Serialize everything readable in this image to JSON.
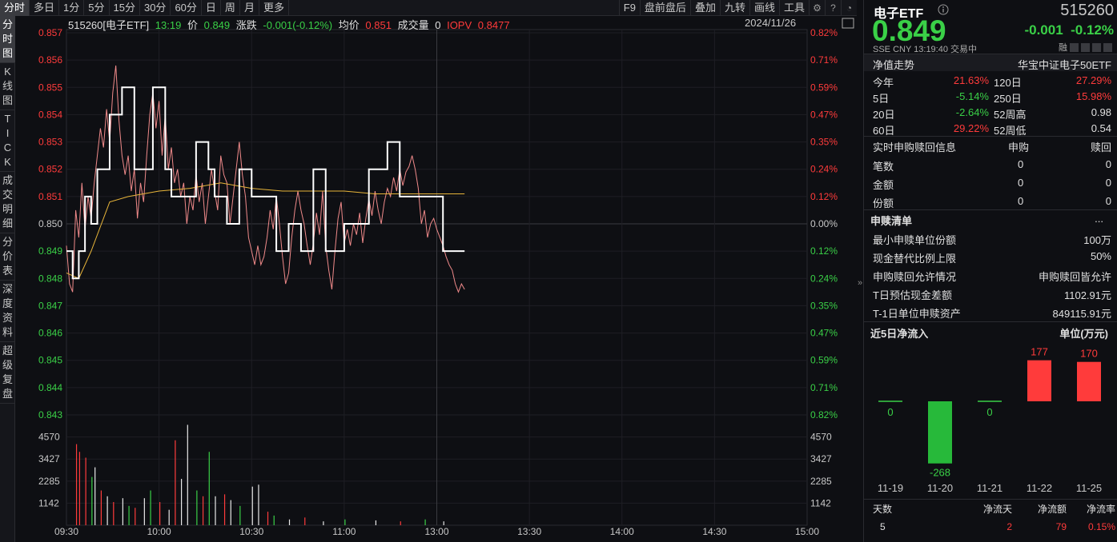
{
  "toolbar": {
    "tabs": [
      "分时",
      "多日",
      "1分",
      "5分",
      "15分",
      "30分",
      "60分",
      "日",
      "周",
      "月",
      "更多"
    ],
    "right": [
      "F9",
      "盘前盘后",
      "叠加",
      "九转",
      "画线",
      "工具"
    ]
  },
  "sidebar": {
    "items": [
      "分时图",
      "K线图",
      "TICK",
      "成交明细",
      "分价表",
      "深度资料",
      "超级复盘"
    ]
  },
  "info": {
    "code_name": "515260[电子ETF]",
    "time": "13:19",
    "price_label": "价",
    "price": "0.849",
    "change_label": "涨跌",
    "change": "-0.001(-0.12%)",
    "avg_label": "均价",
    "avg": "0.851",
    "vol_label": "成交量",
    "vol": "0",
    "iopv_label": "IOPV",
    "iopv": "0.8477",
    "date": "2024/11/26"
  },
  "axes": {
    "price_ticks": [
      "0.857",
      "0.856",
      "0.855",
      "0.854",
      "0.853",
      "0.852",
      "0.851",
      "0.850",
      "0.849",
      "0.848",
      "0.847",
      "0.846",
      "0.845",
      "0.844",
      "0.843"
    ],
    "pct_ticks": [
      "0.82%",
      "0.71%",
      "0.59%",
      "0.47%",
      "0.35%",
      "0.24%",
      "0.12%",
      "0.00%",
      "0.12%",
      "0.24%",
      "0.35%",
      "0.47%",
      "0.59%",
      "0.71%",
      "0.82%"
    ],
    "vol_ticks": [
      "4570",
      "3427",
      "2285",
      "1142"
    ],
    "time_ticks": [
      "09:30",
      "10:00",
      "10:30",
      "11:00",
      "13:00",
      "13:30",
      "14:00",
      "14:30",
      "15:00"
    ]
  },
  "chart_data": {
    "type": "line",
    "prev_close": 0.85,
    "ylim": [
      0.843,
      0.857
    ],
    "series": [
      {
        "points": [
          [
            0,
            0.8492
          ],
          [
            1,
            0.8478
          ],
          [
            2,
            0.8475
          ],
          [
            3,
            0.8505
          ],
          [
            4,
            0.8495
          ],
          [
            5,
            0.8515
          ],
          [
            6,
            0.8498
          ],
          [
            7,
            0.851
          ],
          [
            8,
            0.8502
          ],
          [
            9,
            0.8515
          ],
          [
            10,
            0.8525
          ],
          [
            11,
            0.8535
          ],
          [
            12,
            0.8528
          ],
          [
            13,
            0.8542
          ],
          [
            14,
            0.853
          ],
          [
            15,
            0.8548
          ],
          [
            16,
            0.8558
          ],
          [
            17,
            0.8538
          ],
          [
            18,
            0.8525
          ],
          [
            19,
            0.8518
          ],
          [
            20,
            0.8525
          ],
          [
            21,
            0.8512
          ],
          [
            22,
            0.852
          ],
          [
            23,
            0.8502
          ],
          [
            24,
            0.8515
          ],
          [
            25,
            0.8508
          ],
          [
            26,
            0.8525
          ],
          [
            27,
            0.854
          ],
          [
            28,
            0.8548
          ],
          [
            29,
            0.8535
          ],
          [
            30,
            0.8545
          ],
          [
            31,
            0.8525
          ],
          [
            32,
            0.854
          ],
          [
            33,
            0.852
          ],
          [
            34,
            0.8528
          ],
          [
            35,
            0.8515
          ],
          [
            36,
            0.852
          ],
          [
            37,
            0.851
          ],
          [
            38,
            0.8515
          ],
          [
            39,
            0.85
          ],
          [
            40,
            0.851
          ],
          [
            41,
            0.8505
          ],
          [
            42,
            0.8518
          ],
          [
            43,
            0.8508
          ],
          [
            44,
            0.8515
          ],
          [
            45,
            0.85
          ],
          [
            46,
            0.851
          ],
          [
            47,
            0.852
          ],
          [
            48,
            0.8512
          ],
          [
            49,
            0.8505
          ],
          [
            50,
            0.8525
          ],
          [
            51,
            0.8518
          ],
          [
            52,
            0.8515
          ],
          [
            53,
            0.85
          ],
          [
            54,
            0.851
          ],
          [
            55,
            0.852
          ],
          [
            56,
            0.853
          ],
          [
            57,
            0.8518
          ],
          [
            58,
            0.851
          ],
          [
            59,
            0.8495
          ],
          [
            60,
            0.849
          ],
          [
            61,
            0.8485
          ],
          [
            62,
            0.8492
          ],
          [
            63,
            0.8485
          ],
          [
            64,
            0.8488
          ],
          [
            65,
            0.8495
          ],
          [
            66,
            0.8505
          ],
          [
            67,
            0.8498
          ],
          [
            68,
            0.851
          ],
          [
            69,
            0.85
          ],
          [
            70,
            0.8488
          ],
          [
            71,
            0.8478
          ],
          [
            72,
            0.8482
          ],
          [
            73,
            0.8495
          ],
          [
            74,
            0.8505
          ],
          [
            75,
            0.8512
          ],
          [
            76,
            0.8505
          ],
          [
            77,
            0.85
          ],
          [
            78,
            0.8492
          ],
          [
            79,
            0.8485
          ],
          [
            80,
            0.8493
          ],
          [
            81,
            0.8504
          ],
          [
            82,
            0.8496
          ],
          [
            83,
            0.8512
          ],
          [
            84,
            0.8492
          ],
          [
            85,
            0.8483
          ],
          [
            86,
            0.8476
          ],
          [
            87,
            0.849
          ],
          [
            88,
            0.8502
          ],
          [
            89,
            0.8508
          ],
          [
            90,
            0.8493
          ],
          [
            91,
            0.8498
          ],
          [
            92,
            0.8492
          ],
          [
            93,
            0.85
          ],
          [
            94,
            0.8496
          ],
          [
            95,
            0.8504
          ],
          [
            96,
            0.8493
          ],
          [
            97,
            0.8502
          ],
          [
            98,
            0.8509
          ],
          [
            99,
            0.8503
          ],
          [
            100,
            0.8512
          ],
          [
            101,
            0.8505
          ],
          [
            102,
            0.85
          ],
          [
            103,
            0.8508
          ],
          [
            104,
            0.8513
          ],
          [
            105,
            0.851
          ],
          [
            106,
            0.8517
          ],
          [
            107,
            0.8512
          ],
          [
            108,
            0.852
          ],
          [
            109,
            0.8514
          ],
          [
            110,
            0.8519
          ],
          [
            111,
            0.8521
          ],
          [
            112,
            0.8525
          ],
          [
            113,
            0.852
          ],
          [
            114,
            0.8513
          ],
          [
            115,
            0.85
          ],
          [
            116,
            0.8505
          ],
          [
            117,
            0.8495
          ],
          [
            118,
            0.85
          ],
          [
            119,
            0.8502
          ],
          [
            120,
            0.8498
          ],
          [
            121,
            0.8495
          ],
          [
            122,
            0.8492
          ],
          [
            123,
            0.8488
          ],
          [
            124,
            0.8485
          ],
          [
            125,
            0.8483
          ],
          [
            126,
            0.8478
          ],
          [
            127,
            0.8475
          ],
          [
            128,
            0.8478
          ],
          [
            129,
            0.8476
          ]
        ]
      },
      {
        "points": [
          [
            0,
            0.8482
          ],
          [
            4,
            0.848
          ],
          [
            8,
            0.849
          ],
          [
            14,
            0.8508
          ],
          [
            20,
            0.851
          ],
          [
            30,
            0.8512
          ],
          [
            40,
            0.8513
          ],
          [
            50,
            0.8515
          ],
          [
            60,
            0.8513
          ],
          [
            70,
            0.8512
          ],
          [
            80,
            0.8512
          ],
          [
            90,
            0.8512
          ],
          [
            100,
            0.8511
          ],
          [
            110,
            0.8511
          ],
          [
            120,
            0.8511
          ],
          [
            129,
            0.8511
          ]
        ]
      },
      {
        "points": [
          [
            0,
            0.849
          ],
          [
            2,
            0.848
          ],
          [
            4,
            0.849
          ],
          [
            6,
            0.851
          ],
          [
            8,
            0.85
          ],
          [
            10,
            0.852
          ],
          [
            14,
            0.854
          ],
          [
            18,
            0.855
          ],
          [
            22,
            0.852
          ],
          [
            26,
            0.852
          ],
          [
            28,
            0.855
          ],
          [
            32,
            0.852
          ],
          [
            34,
            0.851
          ],
          [
            40,
            0.851
          ],
          [
            42,
            0.853
          ],
          [
            46,
            0.852
          ],
          [
            48,
            0.851
          ],
          [
            52,
            0.85
          ],
          [
            56,
            0.852
          ],
          [
            60,
            0.851
          ],
          [
            64,
            0.851
          ],
          [
            68,
            0.849
          ],
          [
            72,
            0.85
          ],
          [
            76,
            0.849
          ],
          [
            80,
            0.852
          ],
          [
            84,
            0.849
          ],
          [
            90,
            0.85
          ],
          [
            98,
            0.852
          ],
          [
            104,
            0.853
          ],
          [
            108,
            0.851
          ],
          [
            118,
            0.851
          ],
          [
            122,
            0.849
          ],
          [
            129,
            0.849
          ]
        ]
      }
    ],
    "volumes": [
      [
        3,
        4200,
        "r"
      ],
      [
        4,
        3800,
        "r"
      ],
      [
        6,
        3500,
        "r"
      ],
      [
        8,
        2500,
        "g"
      ],
      [
        9,
        3000,
        "w"
      ],
      [
        11,
        1800,
        "r"
      ],
      [
        13,
        1500,
        "w"
      ],
      [
        15,
        1200,
        "r"
      ],
      [
        18,
        1400,
        "w"
      ],
      [
        20,
        1000,
        "g"
      ],
      [
        22,
        900,
        "r"
      ],
      [
        25,
        1400,
        "w"
      ],
      [
        27,
        1800,
        "g"
      ],
      [
        30,
        1200,
        "r"
      ],
      [
        33,
        800,
        "w"
      ],
      [
        35,
        4400,
        "r"
      ],
      [
        37,
        2400,
        "w"
      ],
      [
        39,
        5200,
        "w"
      ],
      [
        42,
        1800,
        "g"
      ],
      [
        44,
        1500,
        "r"
      ],
      [
        46,
        3800,
        "g"
      ],
      [
        48,
        1500,
        "w"
      ],
      [
        51,
        1600,
        "r"
      ],
      [
        53,
        1300,
        "w"
      ],
      [
        56,
        1000,
        "g"
      ],
      [
        60,
        2000,
        "w"
      ],
      [
        62,
        2100,
        "w"
      ],
      [
        65,
        700,
        "r"
      ],
      [
        67,
        500,
        "g"
      ],
      [
        72,
        300,
        "w"
      ],
      [
        77,
        400,
        "r"
      ],
      [
        83,
        200,
        "w"
      ],
      [
        90,
        300,
        "g"
      ],
      [
        100,
        250,
        "w"
      ],
      [
        108,
        200,
        "r"
      ],
      [
        116,
        300,
        "g"
      ],
      [
        122,
        200,
        "w"
      ]
    ]
  },
  "panel": {
    "name": "电子ETF",
    "code": "515260",
    "price": "0.849",
    "change": "-0.001",
    "change_pct": "-0.12%",
    "meta": "SSE  CNY  13:19:40  交易中",
    "rong": "融",
    "nav_title": "净值走势",
    "index_name": "华宝中证电子50ETF",
    "perf": [
      {
        "l1": "今年",
        "v1": "21.63%",
        "c1": "r",
        "l2": "120日",
        "v2": "27.29%",
        "c2": "r"
      },
      {
        "l1": "5日",
        "v1": "-5.14%",
        "c1": "g",
        "l2": "250日",
        "v2": "15.98%",
        "c2": "r"
      },
      {
        "l1": "20日",
        "v1": "-2.64%",
        "c1": "g",
        "l2": "52周高",
        "v2": "0.98",
        "c2": "w"
      },
      {
        "l1": "60日",
        "v1": "29.22%",
        "c1": "r",
        "l2": "52周低",
        "v2": "0.54",
        "c2": "w"
      }
    ],
    "sub_title": "实时申购赎回信息",
    "sub_h1": "申购",
    "sub_h2": "赎回",
    "sub_rows": [
      {
        "l": "笔数",
        "a": "0",
        "b": "0"
      },
      {
        "l": "金额",
        "a": "0",
        "b": "0"
      },
      {
        "l": "份额",
        "a": "0",
        "b": "0"
      }
    ],
    "list_title": "申赎清单",
    "more": "...",
    "list_rows": [
      {
        "l": "最小申赎单位份额",
        "v": "100万"
      },
      {
        "l": "现金替代比例上限",
        "v": "50%"
      },
      {
        "l": "申购赎回允许情况",
        "v": "申购赎回皆允许"
      },
      {
        "l": "T日预估现金差额",
        "v": "1102.91元"
      },
      {
        "l": "T-1日单位申赎资产",
        "v": "849115.91元"
      }
    ],
    "flow_title": "近5日净流入",
    "flow_unit": "单位(万元)",
    "flow": [
      {
        "date": "11-19",
        "value": 0
      },
      {
        "date": "11-20",
        "value": -268
      },
      {
        "date": "11-21",
        "value": 0
      },
      {
        "date": "11-22",
        "value": 177
      },
      {
        "date": "11-25",
        "value": 170
      }
    ],
    "stat_h": [
      "天数",
      "净流天",
      "净流额",
      "净流率"
    ],
    "stat_v": [
      "5",
      "2",
      "79",
      "0.15%"
    ]
  }
}
